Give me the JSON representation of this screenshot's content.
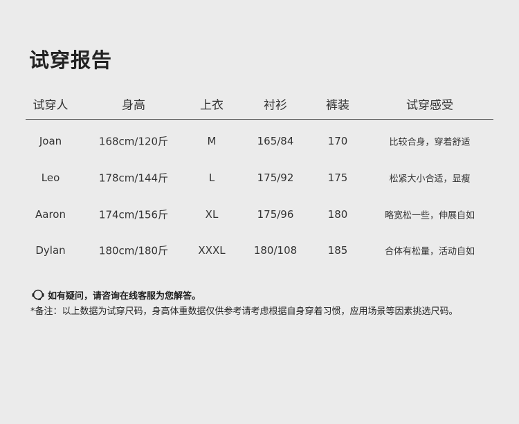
{
  "title": "试穿报告",
  "columns": [
    "试穿人",
    "身高",
    "上衣",
    "衬衫",
    "裤装",
    "试穿感受"
  ],
  "rows": [
    [
      "Joan",
      "168cm/120斤",
      "M",
      "165/84",
      "170",
      "比较合身，穿着舒适"
    ],
    [
      "Leo",
      "178cm/144斤",
      "L",
      "175/92",
      "175",
      "松紧大小合适，显瘦"
    ],
    [
      "Aaron",
      "174cm/156斤",
      "XL",
      "175/96",
      "180",
      "略宽松一些，伸展自如"
    ],
    [
      "Dylan",
      "180cm/180斤",
      "XXXL",
      "180/108",
      "185",
      "合体有松量，活动自如"
    ]
  ],
  "contact": {
    "icon": "headset-icon",
    "text": "如有疑问，请咨询在线客服为您解答。"
  },
  "note": "*备注：以上数据为试穿尺码，身高体重数据仅供参考请考虑根据自身穿着习惯，应用场景等因素挑选尺码。"
}
